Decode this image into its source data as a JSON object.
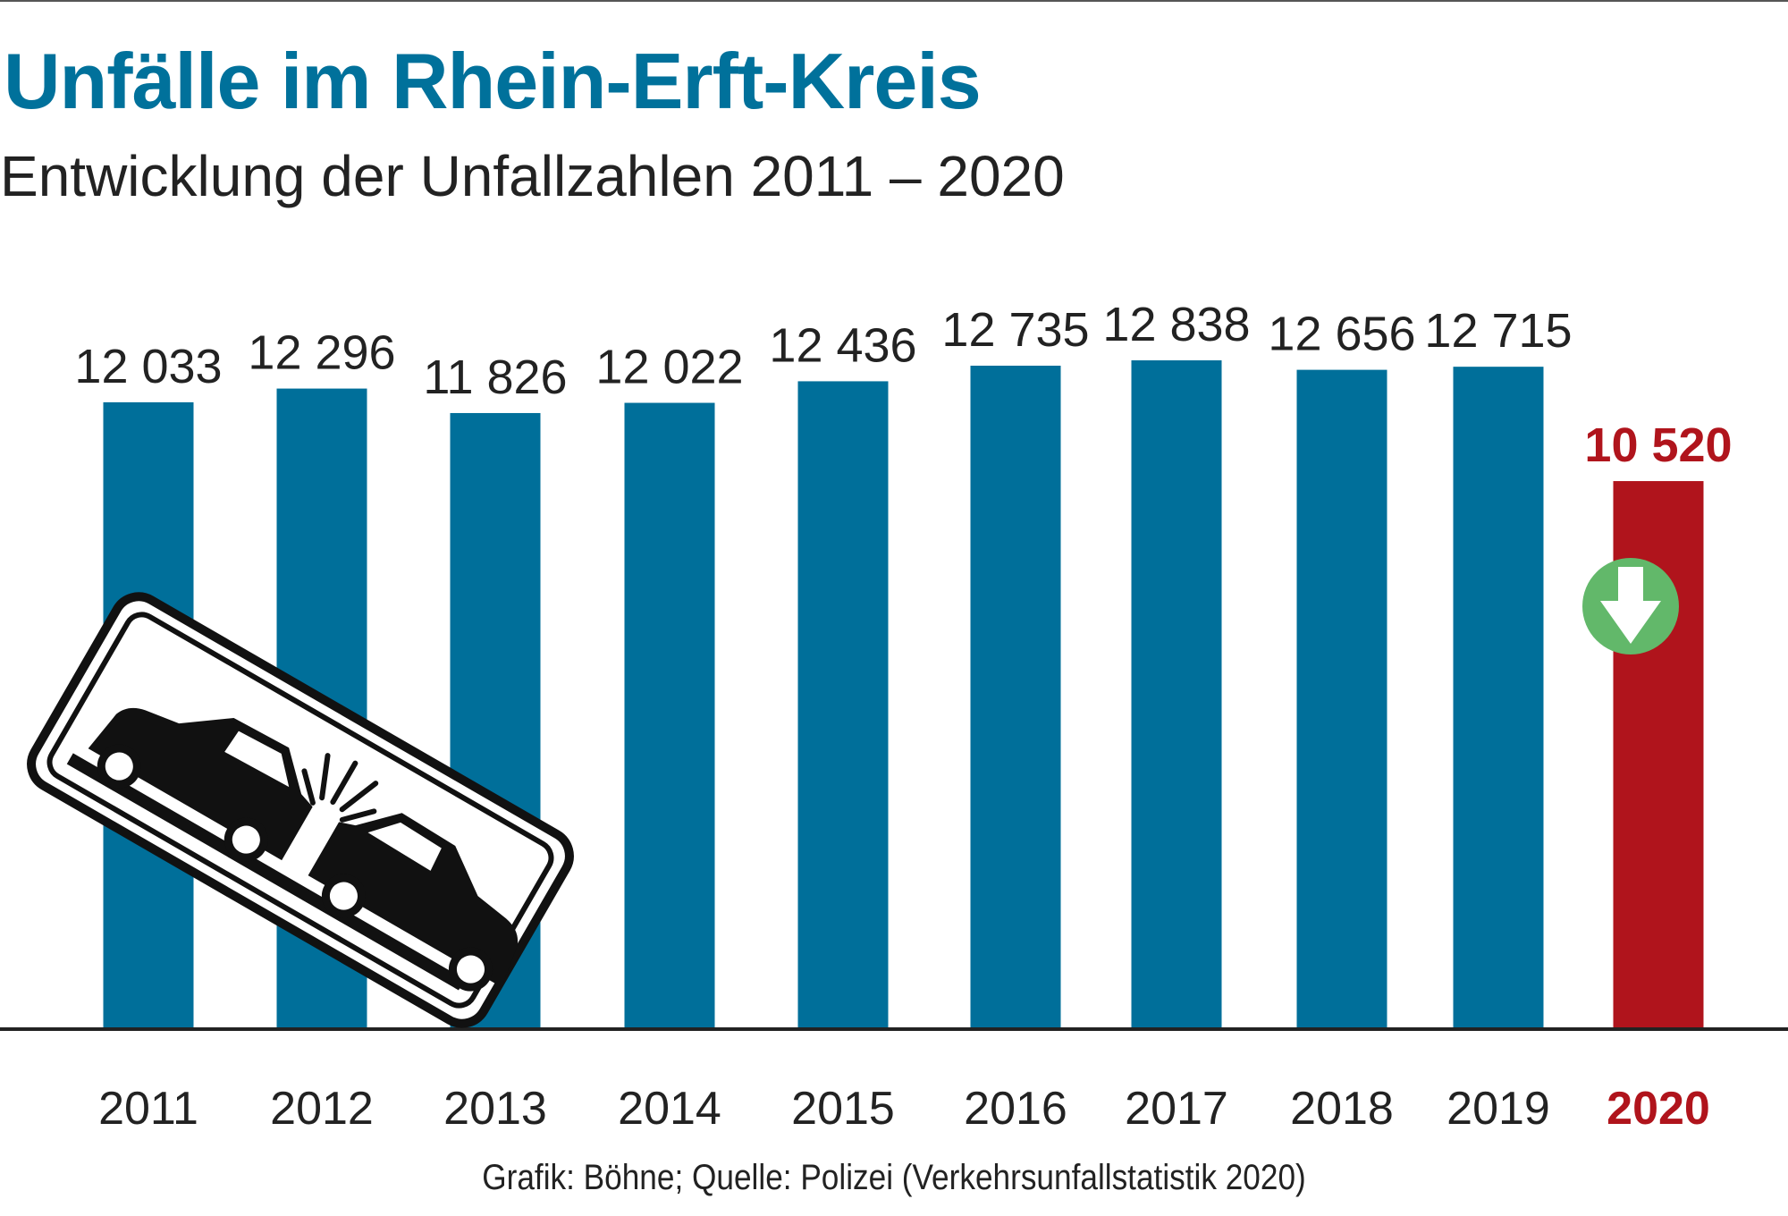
{
  "header": {
    "title": "Unfälle im Rhein-Erft-Kreis",
    "subtitle": "Entwicklung der Unfallzahlen 2011 – 2020"
  },
  "footer": {
    "source": "Grafik: Böhne; Quelle: Polizei (Verkehrsunfallstatistik 2020)"
  },
  "colors": {
    "title": "#00719b",
    "bar": "#006f9a",
    "highlight_bar": "#b0141c",
    "highlight_label": "#b0141c",
    "arrow_circle": "#62b86a",
    "text": "#222222",
    "axis": "#222222"
  },
  "icons": [
    "car-crash-sign-icon",
    "down-arrow-icon"
  ],
  "chart_data": {
    "type": "bar",
    "categories": [
      "2011",
      "2012",
      "2013",
      "2014",
      "2015",
      "2016",
      "2017",
      "2018",
      "2019",
      "2020"
    ],
    "values": [
      12033,
      12296,
      11826,
      12022,
      12436,
      12735,
      12838,
      12656,
      12715,
      10520
    ],
    "value_labels": [
      "12 033",
      "12 296",
      "11 826",
      "12 022",
      "12 436",
      "12 735",
      "12 838",
      "12 656",
      "12 715",
      "10 520"
    ],
    "highlight_index": 9,
    "title": "Unfälle im Rhein-Erft-Kreis",
    "xlabel": "",
    "ylabel": "",
    "ylim": [
      0,
      12838
    ],
    "grid": false,
    "legend": "none"
  }
}
